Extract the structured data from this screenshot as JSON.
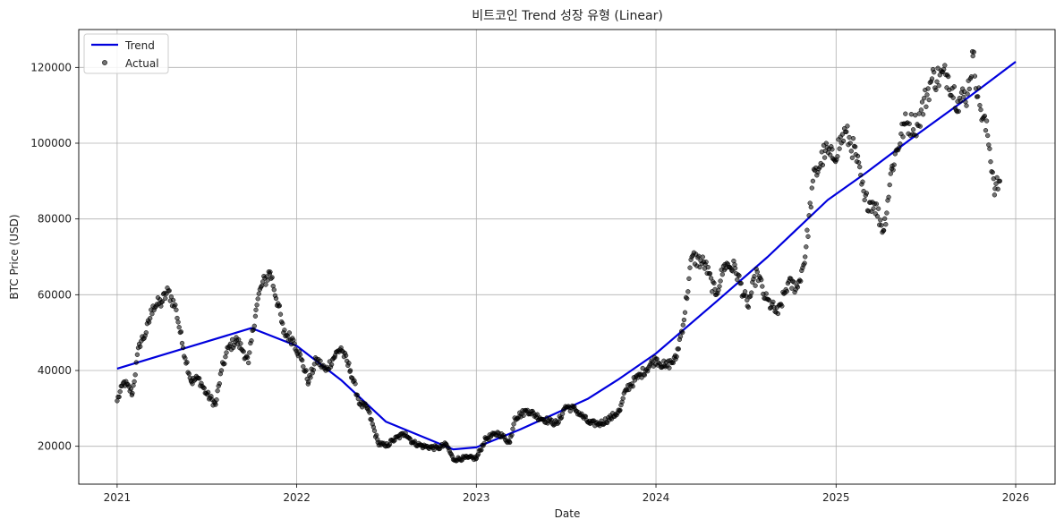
{
  "chart_data": {
    "type": "scatter",
    "title": "비트코인 Trend 성장 유형 (Linear)",
    "xlabel": "Date",
    "ylabel": "BTC Price (USD)",
    "xlim": [
      "2020-10-15",
      "2026-03-22"
    ],
    "ylim": [
      10000,
      130000
    ],
    "x_ticks": [
      "2021",
      "2022",
      "2023",
      "2024",
      "2025",
      "2026"
    ],
    "y_ticks": [
      "20000",
      "40000",
      "60000",
      "80000",
      "100000",
      "120000"
    ],
    "grid": true,
    "legend_position": "top-left",
    "legend": [
      "Trend",
      "Actual"
    ],
    "series": [
      {
        "name": "Trend",
        "kind": "line",
        "color": "#0000dd",
        "points": [
          [
            "2021-01-01",
            40500
          ],
          [
            "2021-10-01",
            51200
          ],
          [
            "2022-01-01",
            46500
          ],
          [
            "2022-04-01",
            37500
          ],
          [
            "2022-07-01",
            26500
          ],
          [
            "2022-11-15",
            19200
          ],
          [
            "2023-01-01",
            19700
          ],
          [
            "2023-04-01",
            24500
          ],
          [
            "2023-08-15",
            32500
          ],
          [
            "2023-10-15",
            37500
          ],
          [
            "2024-01-01",
            44500
          ],
          [
            "2024-05-01",
            58000
          ],
          [
            "2024-08-15",
            70000
          ],
          [
            "2024-12-15",
            85000
          ],
          [
            "2025-03-01",
            92000
          ],
          [
            "2025-06-01",
            101000
          ],
          [
            "2025-10-01",
            112500
          ],
          [
            "2026-01-01",
            121500
          ]
        ]
      },
      {
        "name": "Actual",
        "kind": "scatter",
        "color": "#000000",
        "anchors": [
          [
            "2021-01-01",
            32000
          ],
          [
            "2021-01-15",
            37000
          ],
          [
            "2021-02-01",
            34000
          ],
          [
            "2021-02-15",
            47000
          ],
          [
            "2021-03-01",
            50000
          ],
          [
            "2021-03-15",
            57000
          ],
          [
            "2021-04-01",
            58000
          ],
          [
            "2021-04-15",
            61000
          ],
          [
            "2021-05-01",
            56000
          ],
          [
            "2021-05-15",
            46000
          ],
          [
            "2021-06-01",
            37000
          ],
          [
            "2021-06-15",
            38000
          ],
          [
            "2021-07-01",
            34000
          ],
          [
            "2021-07-20",
            31000
          ],
          [
            "2021-08-01",
            40000
          ],
          [
            "2021-08-15",
            46000
          ],
          [
            "2021-09-01",
            48000
          ],
          [
            "2021-09-15",
            45000
          ],
          [
            "2021-09-25",
            42000
          ],
          [
            "2021-10-10",
            56000
          ],
          [
            "2021-10-20",
            62000
          ],
          [
            "2021-11-08",
            66000
          ],
          [
            "2021-11-25",
            57000
          ],
          [
            "2021-12-05",
            50000
          ],
          [
            "2021-12-25",
            48000
          ],
          [
            "2022-01-10",
            43000
          ],
          [
            "2022-01-25",
            37000
          ],
          [
            "2022-02-10",
            43000
          ],
          [
            "2022-03-01",
            40000
          ],
          [
            "2022-03-20",
            44000
          ],
          [
            "2022-04-01",
            46000
          ],
          [
            "2022-04-20",
            40000
          ],
          [
            "2022-05-10",
            31000
          ],
          [
            "2022-05-25",
            30000
          ],
          [
            "2022-06-15",
            21000
          ],
          [
            "2022-07-01",
            20000
          ],
          [
            "2022-07-15",
            21500
          ],
          [
            "2022-08-10",
            23500
          ],
          [
            "2022-08-25",
            21000
          ],
          [
            "2022-09-15",
            20000
          ],
          [
            "2022-10-15",
            19500
          ],
          [
            "2022-11-01",
            20500
          ],
          [
            "2022-11-15",
            16500
          ],
          [
            "2022-12-15",
            17000
          ],
          [
            "2023-01-01",
            16800
          ],
          [
            "2023-01-20",
            22000
          ],
          [
            "2023-02-15",
            23500
          ],
          [
            "2023-03-10",
            21000
          ],
          [
            "2023-03-20",
            27500
          ],
          [
            "2023-04-15",
            29500
          ],
          [
            "2023-05-10",
            27500
          ],
          [
            "2023-06-01",
            26500
          ],
          [
            "2023-06-15",
            26000
          ],
          [
            "2023-07-01",
            30500
          ],
          [
            "2023-07-20",
            29800
          ],
          [
            "2023-08-20",
            26000
          ],
          [
            "2023-09-10",
            26000
          ],
          [
            "2023-10-01",
            27500
          ],
          [
            "2023-10-20",
            29500
          ],
          [
            "2023-11-01",
            35000
          ],
          [
            "2023-12-01",
            39000
          ],
          [
            "2024-01-01",
            43000
          ],
          [
            "2024-01-20",
            41000
          ],
          [
            "2024-02-10",
            43000
          ],
          [
            "2024-02-25",
            52000
          ],
          [
            "2024-03-14",
            70000
          ],
          [
            "2024-04-10",
            68000
          ],
          [
            "2024-05-01",
            60000
          ],
          [
            "2024-05-20",
            68000
          ],
          [
            "2024-06-10",
            67000
          ],
          [
            "2024-07-05",
            57000
          ],
          [
            "2024-07-25",
            66000
          ],
          [
            "2024-08-10",
            59000
          ],
          [
            "2024-09-05",
            55000
          ],
          [
            "2024-09-25",
            63000
          ],
          [
            "2024-10-15",
            62000
          ],
          [
            "2024-10-30",
            70000
          ],
          [
            "2024-11-15",
            90000
          ],
          [
            "2024-12-10",
            98000
          ],
          [
            "2024-12-25",
            96000
          ],
          [
            "2025-01-20",
            103000
          ],
          [
            "2025-02-10",
            97000
          ],
          [
            "2025-02-28",
            85000
          ],
          [
            "2025-03-20",
            84000
          ],
          [
            "2025-04-08",
            77000
          ],
          [
            "2025-04-25",
            94000
          ],
          [
            "2025-05-20",
            105000
          ],
          [
            "2025-06-15",
            105000
          ],
          [
            "2025-07-15",
            117000
          ],
          [
            "2025-08-15",
            118000
          ],
          [
            "2025-09-05",
            111000
          ],
          [
            "2025-09-25",
            113000
          ],
          [
            "2025-10-06",
            123000
          ],
          [
            "2025-10-20",
            110000
          ],
          [
            "2025-11-05",
            102000
          ],
          [
            "2025-11-20",
            88000
          ],
          [
            "2025-11-30",
            90000
          ]
        ]
      }
    ]
  }
}
